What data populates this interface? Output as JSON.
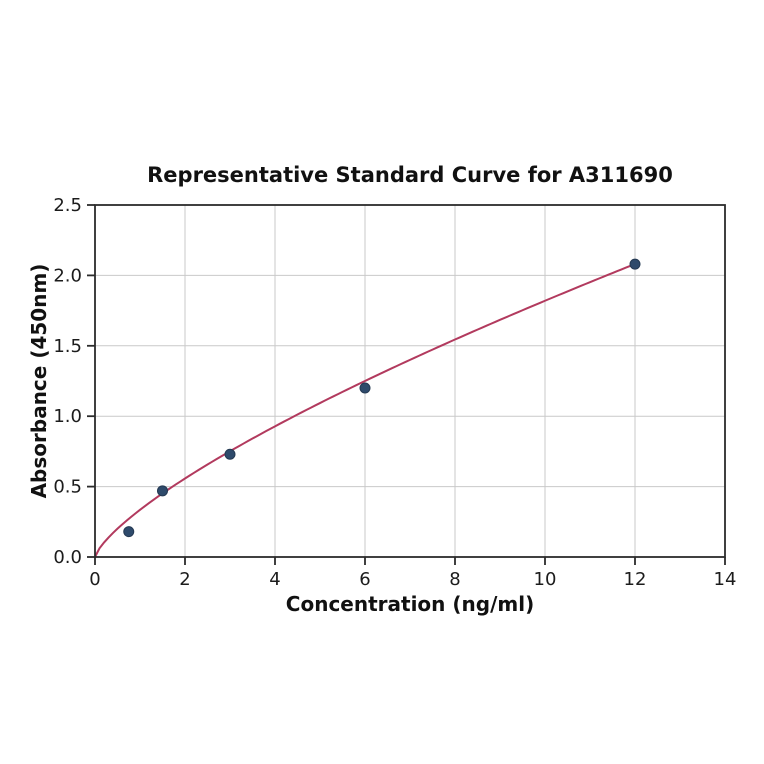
{
  "chart_data": {
    "type": "scatter",
    "title": "Representative Standard Curve for A311690",
    "xlabel": "Concentration (ng/ml)",
    "ylabel": "Absorbance (450nm)",
    "xlim": [
      0,
      14
    ],
    "ylim": [
      0,
      2.5
    ],
    "x_ticks": [
      0,
      2,
      4,
      6,
      8,
      10,
      12,
      14
    ],
    "x_tick_labels": [
      "0",
      "2",
      "4",
      "6",
      "8",
      "10",
      "12",
      "14"
    ],
    "y_ticks": [
      0,
      0.5,
      1,
      1.5,
      2,
      2.5
    ],
    "y_tick_labels": [
      "0.0",
      "0.5",
      "1.0",
      "1.5",
      "2.0",
      "2.5"
    ],
    "grid": true,
    "legend": "none",
    "series": [
      {
        "name": "standard-points",
        "type": "scatter",
        "x": [
          0.75,
          1.5,
          3,
          6,
          12
        ],
        "y": [
          0.18,
          0.47,
          0.73,
          1.2,
          2.08
        ],
        "color": "#2e4a6b"
      },
      {
        "name": "fit-curve",
        "type": "line",
        "fit": {
          "form": "power",
          "a": 0.335,
          "b": 0.735,
          "x_start": 0,
          "x_end": 12
        },
        "color": "#b23a5e"
      }
    ],
    "colors": {
      "curve": "#b23a5e",
      "point": "#2e4a6b",
      "point_edge": "#243952",
      "grid": "#c9c9c9",
      "spine": "#2b2b2b",
      "text": "#111111",
      "background": "#ffffff"
    }
  }
}
